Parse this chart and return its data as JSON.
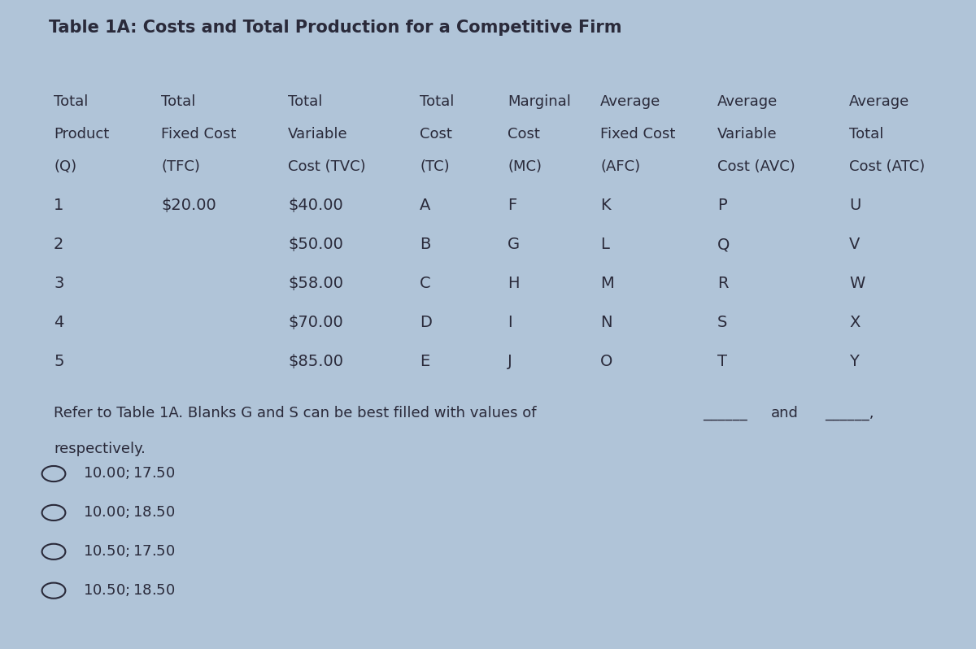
{
  "title": "Table 1A: Costs and Total Production for a Competitive Firm",
  "bg_color": "#b0c4d8",
  "text_color": "#2a2a3a",
  "header_lines": [
    [
      "Total",
      "Total",
      "Total",
      "",
      "Total",
      "Marginal",
      "Average",
      "",
      "Average",
      "",
      "Average"
    ],
    [
      "Product",
      "Fixed Cost",
      "Variable",
      "",
      "Cost",
      "Cost",
      "",
      "Fixed Cost",
      "Variable",
      "",
      "Total"
    ],
    [
      "(Q)",
      "(TFC)",
      "Cost (TVC)",
      "",
      "(TC)",
      "(MC)",
      "",
      "(AFC)",
      "",
      "Cost (AVC)",
      "Cost (ATC)"
    ]
  ],
  "col_labels_row1": [
    "Total",
    "Total",
    "Total",
    "Total",
    "Marginal",
    "Average",
    "Average",
    "Average"
  ],
  "col_labels_row2": [
    "Product",
    "Fixed Cost",
    "Variable",
    "Cost",
    "Cost",
    "Fixed Cost",
    "Variable",
    "Total"
  ],
  "col_labels_row3": [
    "(Q)",
    "(TFC)",
    "Cost (TVC)",
    "(TC)",
    "(MC)",
    "(AFC)",
    "Cost (AVC)",
    "Cost (ATC)"
  ],
  "data_rows": [
    [
      "1",
      "$20.00",
      "$40.00",
      "A",
      "F",
      "K",
      "P",
      "U"
    ],
    [
      "2",
      "",
      "$50.00",
      "B",
      "G",
      "L",
      "Q",
      "V"
    ],
    [
      "3",
      "",
      "$58.00",
      "C",
      "H",
      "M",
      "R",
      "W"
    ],
    [
      "4",
      "",
      "$70.00",
      "D",
      "I",
      "N",
      "S",
      "X"
    ],
    [
      "5",
      "",
      "$85.00",
      "E",
      "J",
      "O",
      "T",
      "Y"
    ]
  ],
  "question_text": "Refer to Table 1A. Blanks G and S can be best filled with values of",
  "question_text2": "respectively.",
  "question_and": "and",
  "choices": [
    "$10.00; $17.50",
    "$10.00; $18.50",
    "$10.50; $17.50",
    "$10.50; $18.50"
  ],
  "font_size_title": 15,
  "font_size_header": 13,
  "font_size_data": 14,
  "font_size_question": 13,
  "font_size_choices": 13
}
